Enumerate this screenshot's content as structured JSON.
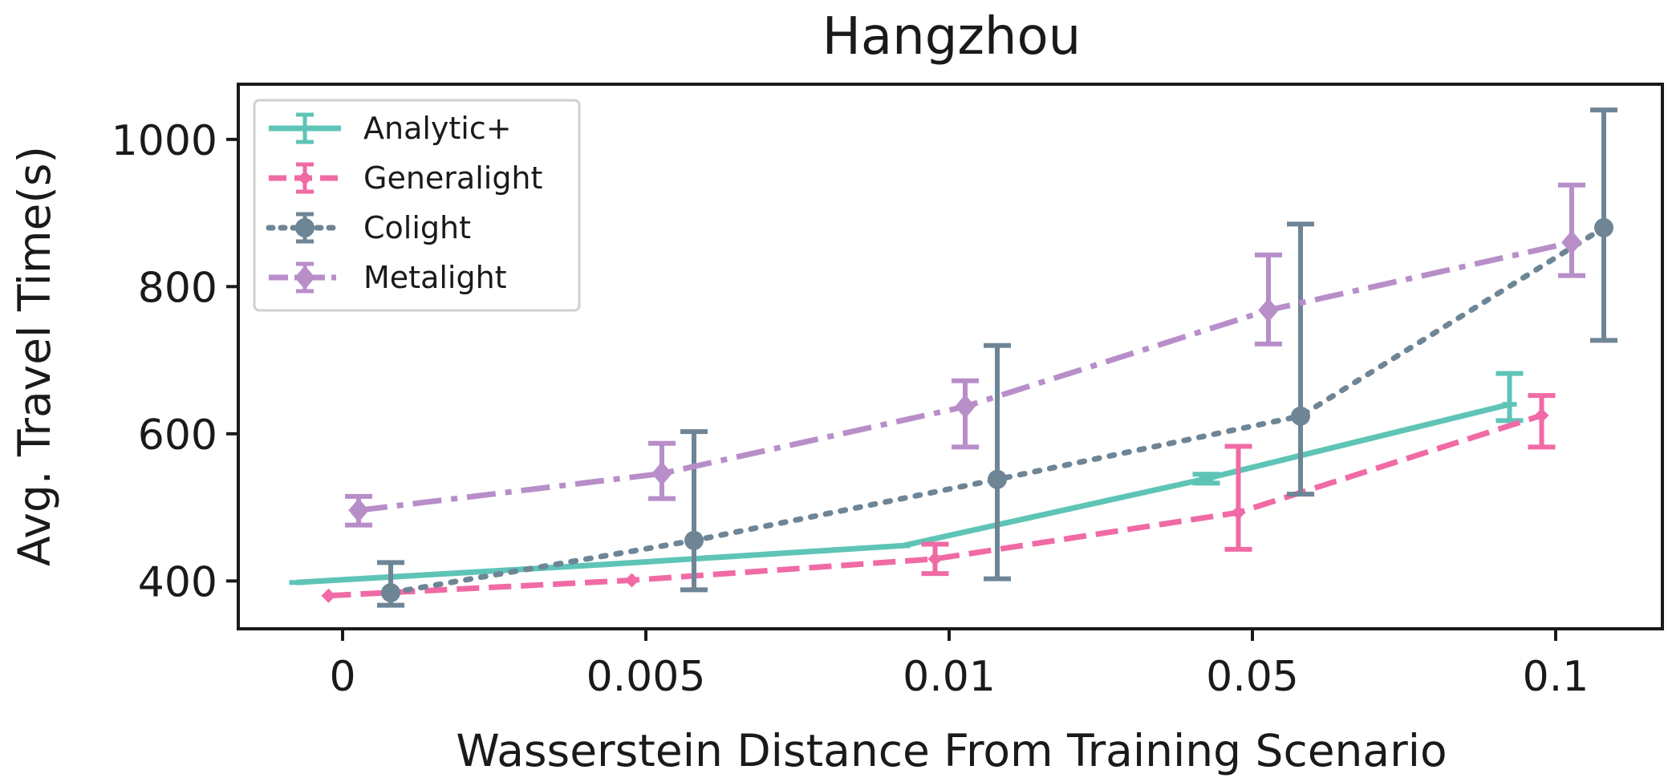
{
  "chart_data": {
    "type": "line",
    "title": "Hangzhou",
    "xlabel": "Wasserstein Distance From Training Scenario",
    "ylabel": "Avg. Travel Time(s)",
    "categories": [
      "0",
      "0.005",
      "0.01",
      "0.05",
      "0.1"
    ],
    "yticks": [
      400,
      600,
      800,
      1000
    ],
    "ylim": [
      335,
      1075
    ],
    "legend_position": "top-left",
    "grid": false,
    "series": [
      {
        "name": "Analytic+",
        "color": "#5ec4b6",
        "line_style": "solid",
        "marker": "cap",
        "offset": -1.15,
        "values": [
          398,
          422,
          448,
          539,
          640
        ],
        "errors": [
          [
            398,
            398
          ],
          [
            422,
            422
          ],
          [
            448,
            448
          ],
          [
            533,
            545
          ],
          [
            618,
            682
          ]
        ]
      },
      {
        "name": "Generalight",
        "color": "#f06aa5",
        "line_style": "dashed",
        "marker": "small-diamond",
        "offset": -0.35,
        "values": [
          380,
          401,
          430,
          493,
          625
        ],
        "errors": [
          [
            380,
            380
          ],
          [
            401,
            401
          ],
          [
            410,
            450
          ],
          [
            443,
            583
          ],
          [
            582,
            652
          ]
        ]
      },
      {
        "name": "Colight",
        "color": "#6e8596",
        "line_style": "dotted",
        "marker": "circle",
        "offset": 1.2,
        "values": [
          384,
          455,
          538,
          624,
          880
        ],
        "errors": [
          [
            367,
            425
          ],
          [
            388,
            603
          ],
          [
            403,
            720
          ],
          [
            518,
            885
          ],
          [
            727,
            1040
          ]
        ]
      },
      {
        "name": "Metalight",
        "color": "#b88ec9",
        "line_style": "dashdot",
        "marker": "diamond",
        "offset": 0.4,
        "values": [
          496,
          546,
          637,
          768,
          860
        ],
        "errors": [
          [
            476,
            515
          ],
          [
            512,
            587
          ],
          [
            582,
            672
          ],
          [
            722,
            843
          ],
          [
            815,
            938
          ]
        ]
      }
    ]
  }
}
